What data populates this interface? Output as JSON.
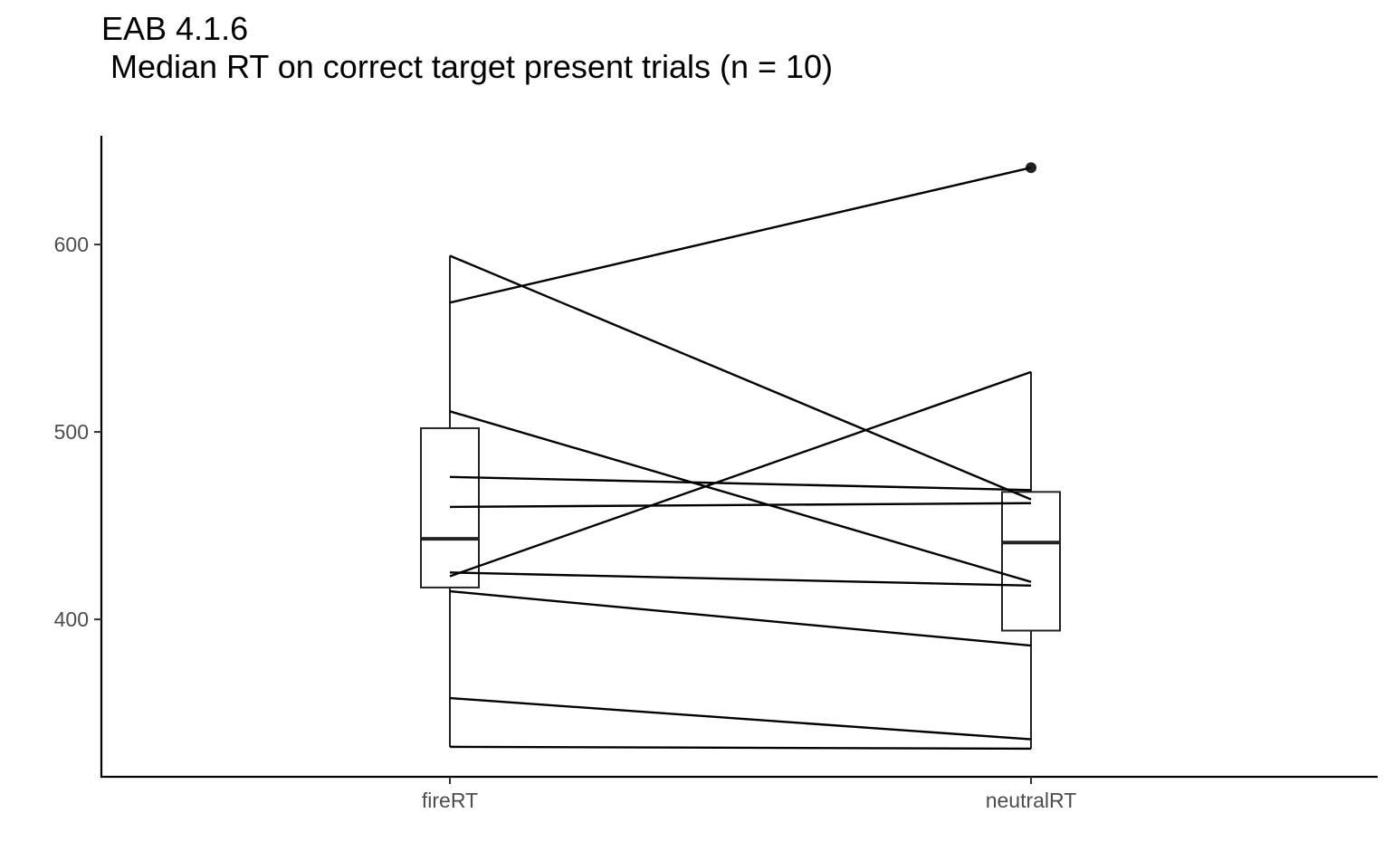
{
  "chart_data": {
    "type": "box",
    "title": "EAB 4.1.6",
    "subtitle": " Median RT on correct target present trials (n = 10)",
    "xlabel": "",
    "ylabel": "",
    "categories": [
      "fireRT",
      "neutralRT"
    ],
    "yticks": [
      400,
      500,
      600
    ],
    "ylim": [
      316,
      658
    ],
    "grid": false,
    "legend": "none",
    "boxes": [
      {
        "category": "fireRT",
        "min": 332,
        "q1": 417,
        "median": 443,
        "q3": 502,
        "max": 594,
        "outliers": []
      },
      {
        "category": "neutralRT",
        "min": 331,
        "q1": 394,
        "median": 441,
        "q3": 468,
        "max": 532,
        "outliers": [
          641
        ]
      }
    ],
    "subjects": [
      {
        "fireRT": 569,
        "neutralRT": 641
      },
      {
        "fireRT": 594,
        "neutralRT": 464
      },
      {
        "fireRT": 511,
        "neutralRT": 420
      },
      {
        "fireRT": 476,
        "neutralRT": 469
      },
      {
        "fireRT": 460,
        "neutralRT": 462
      },
      {
        "fireRT": 425,
        "neutralRT": 418
      },
      {
        "fireRT": 423,
        "neutralRT": 532
      },
      {
        "fireRT": 415,
        "neutralRT": 386
      },
      {
        "fireRT": 358,
        "neutralRT": 336
      },
      {
        "fireRT": 332,
        "neutralRT": 331
      }
    ]
  }
}
